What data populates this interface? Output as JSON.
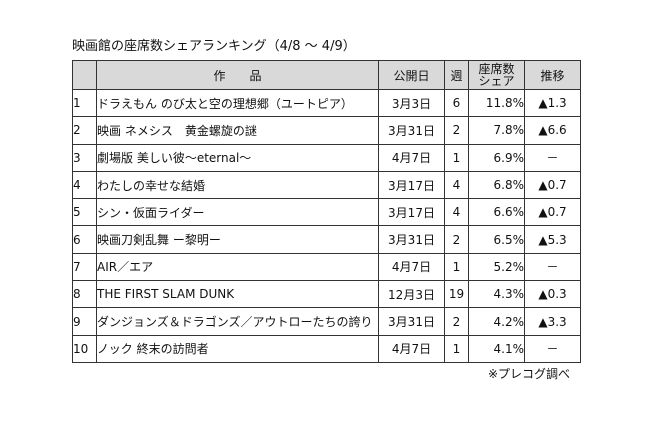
{
  "title": "映画館の座席数シェアランキング（4/8 ～ 4/9）",
  "headers": {
    "title": "作　　品",
    "release": "公開日",
    "weeks": "週",
    "share": "座席数シェア",
    "trend": "推移"
  },
  "rows": [
    {
      "rank": "1",
      "title": "ドラえもん のび太と空の理想郷（ユートピア）",
      "release": "3月3日",
      "weeks": "6",
      "share": "11.8%",
      "trend": "▲1.3"
    },
    {
      "rank": "2",
      "title": "映画 ネメシス　黄金螺旋の謎",
      "release": "3月31日",
      "weeks": "2",
      "share": "7.8%",
      "trend": "▲6.6"
    },
    {
      "rank": "3",
      "title": "劇場版 美しい彼～eternal～",
      "release": "4月7日",
      "weeks": "1",
      "share": "6.9%",
      "trend": "－"
    },
    {
      "rank": "4",
      "title": "わたしの幸せな結婚",
      "release": "3月17日",
      "weeks": "4",
      "share": "6.8%",
      "trend": "▲0.7"
    },
    {
      "rank": "5",
      "title": "シン・仮面ライダー",
      "release": "3月17日",
      "weeks": "4",
      "share": "6.6%",
      "trend": "▲0.7"
    },
    {
      "rank": "6",
      "title": "映画刀剣乱舞 ー黎明ー",
      "release": "3月31日",
      "weeks": "2",
      "share": "6.5%",
      "trend": "▲5.3"
    },
    {
      "rank": "7",
      "title": "AIR／エア",
      "release": "4月7日",
      "weeks": "1",
      "share": "5.2%",
      "trend": "－"
    },
    {
      "rank": "8",
      "title": "THE FIRST SLAM DUNK",
      "release": "12月3日",
      "weeks": "19",
      "share": "4.3%",
      "trend": "▲0.3"
    },
    {
      "rank": "9",
      "title": "ダンジョンズ＆ドラゴンズ／アウトローたちの誇り",
      "release": "3月31日",
      "weeks": "2",
      "share": "4.2%",
      "trend": "▲3.3"
    },
    {
      "rank": "10",
      "title": "ノック 終末の訪問者",
      "release": "4月7日",
      "weeks": "1",
      "share": "4.1%",
      "trend": "－"
    }
  ],
  "note": "※プレコグ調べ"
}
